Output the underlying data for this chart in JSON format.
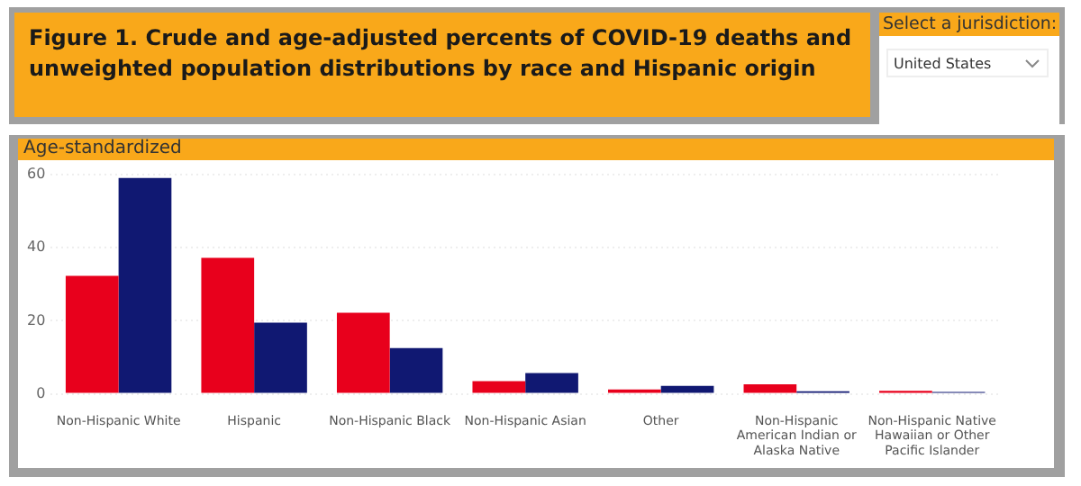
{
  "chart_data": {
    "type": "bar",
    "title": "Figure 1. Crude and age-adjusted percents of COVID-19 deaths and unweighted population distributions by race and Hispanic origin",
    "subtitle": "Age-standardized",
    "annotations": [
      "Select a jurisdiction:",
      "United States"
    ],
    "categories": [
      "Non-Hispanic White",
      "Hispanic",
      "Non-Hispanic Black",
      "Non-Hispanic Asian",
      "Other",
      "Non-Hispanic American Indian or Alaska Native",
      "Non-Hispanic Native Hawaiian or Other Pacific Islander"
    ],
    "series": [
      {
        "color": "#e8001c",
        "values": [
          32.3,
          37.2,
          22.2,
          3.5,
          1.2,
          2.6,
          0.8
        ]
      },
      {
        "color": "#101872",
        "values": [
          59.1,
          19.5,
          12.5,
          5.7,
          2.2,
          0.7,
          0.5
        ]
      }
    ],
    "ylim": [
      0,
      60
    ],
    "yticks": [
      0,
      20,
      40,
      60
    ],
    "grid": "y",
    "legend": false
  }
}
